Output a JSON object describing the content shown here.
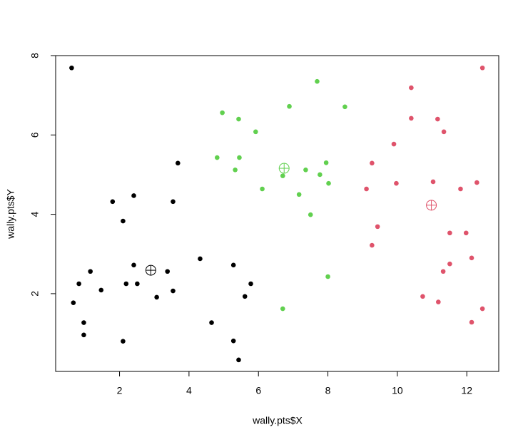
{
  "chart_data": {
    "type": "scatter",
    "x_label": "wally.pts$X",
    "y_label": "wally.pts$Y",
    "xlim": [
      0.16,
      12.92
    ],
    "ylim": [
      0.04,
      8
    ],
    "xticks": [
      2,
      4,
      6,
      8,
      10,
      12
    ],
    "yticks": [
      2,
      4,
      6,
      8
    ],
    "series": [
      {
        "color": "#000000",
        "marker": "point",
        "x": [
          0.62,
          0.67,
          0.83,
          0.97,
          0.97,
          1.16,
          1.47,
          1.8,
          2.1,
          2.1,
          2.19,
          2.41,
          2.41,
          2.51,
          3.07,
          3.38,
          3.54,
          3.54,
          3.68,
          4.32,
          4.65,
          5.28,
          5.28,
          5.43,
          5.61,
          5.78
        ],
        "values": [
          7.69,
          1.77,
          2.25,
          1.27,
          0.96,
          2.56,
          2.09,
          4.32,
          3.83,
          0.8,
          2.25,
          4.47,
          2.72,
          2.25,
          1.91,
          2.56,
          4.32,
          2.07,
          5.29,
          2.88,
          1.27,
          2.72,
          0.81,
          0.33,
          1.93,
          2.25
        ]
      },
      {
        "color": "#61D04F",
        "marker": "point",
        "x": [
          4.96,
          4.81,
          5.43,
          5.33,
          5.45,
          5.92,
          6.11,
          6.7,
          6.89,
          6.7,
          7.17,
          7.36,
          7.5,
          7.69,
          7.77,
          7.95,
          8.02,
          8.0,
          8.49
        ],
        "values": [
          6.56,
          5.43,
          6.4,
          5.12,
          5.43,
          6.08,
          4.64,
          4.97,
          6.72,
          1.62,
          4.5,
          5.12,
          3.99,
          7.35,
          5.0,
          5.3,
          4.78,
          2.43,
          6.71
        ]
      },
      {
        "color": "#DF536B",
        "marker": "point",
        "x": [
          12.45,
          10.4,
          10.4,
          11.16,
          11.34,
          9.9,
          9.27,
          11.03,
          9.97,
          12.29,
          9.11,
          11.82,
          9.43,
          11.51,
          11.98,
          9.27,
          12.14,
          11.51,
          11.32,
          10.73,
          11.18,
          12.14,
          12.45
        ],
        "values": [
          7.69,
          7.19,
          6.42,
          6.4,
          6.08,
          5.77,
          5.29,
          4.82,
          4.78,
          4.8,
          4.64,
          4.64,
          3.69,
          3.53,
          3.53,
          3.22,
          2.9,
          2.75,
          2.56,
          1.93,
          1.79,
          1.28,
          1.62
        ]
      },
      {
        "color": "#000000",
        "marker": "centroid",
        "x": [
          2.9
        ],
        "values": [
          2.59
        ]
      },
      {
        "color": "#61D04F",
        "marker": "centroid",
        "x": [
          6.74
        ],
        "values": [
          5.16
        ]
      },
      {
        "color": "#DF536B",
        "marker": "centroid",
        "x": [
          10.98
        ],
        "values": [
          4.23
        ]
      }
    ]
  }
}
